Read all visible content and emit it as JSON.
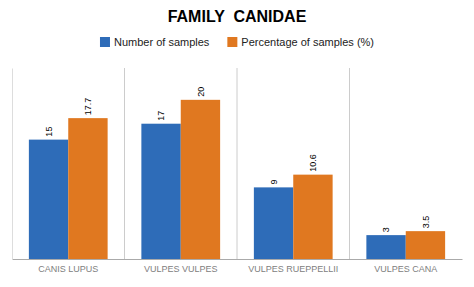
{
  "chart_data": {
    "type": "bar",
    "title": "FAMILY  CANIDAE",
    "categories": [
      "CANIS LUPUS",
      "VULPES VULPES",
      "VULPES RUEPPELLII",
      "VULPES CANA"
    ],
    "series": [
      {
        "name": "Number of samples",
        "color": "#2E6CB8",
        "values": [
          15,
          17,
          9,
          3
        ]
      },
      {
        "name": "Percentage of samples (%)",
        "color": "#E07820",
        "values": [
          17.7,
          20,
          10.6,
          3.5
        ]
      }
    ],
    "ylim": [
      0,
      24
    ],
    "yticks": [],
    "grid": false,
    "legend": "upper center",
    "data_labels": true,
    "tick_labels": "x"
  }
}
